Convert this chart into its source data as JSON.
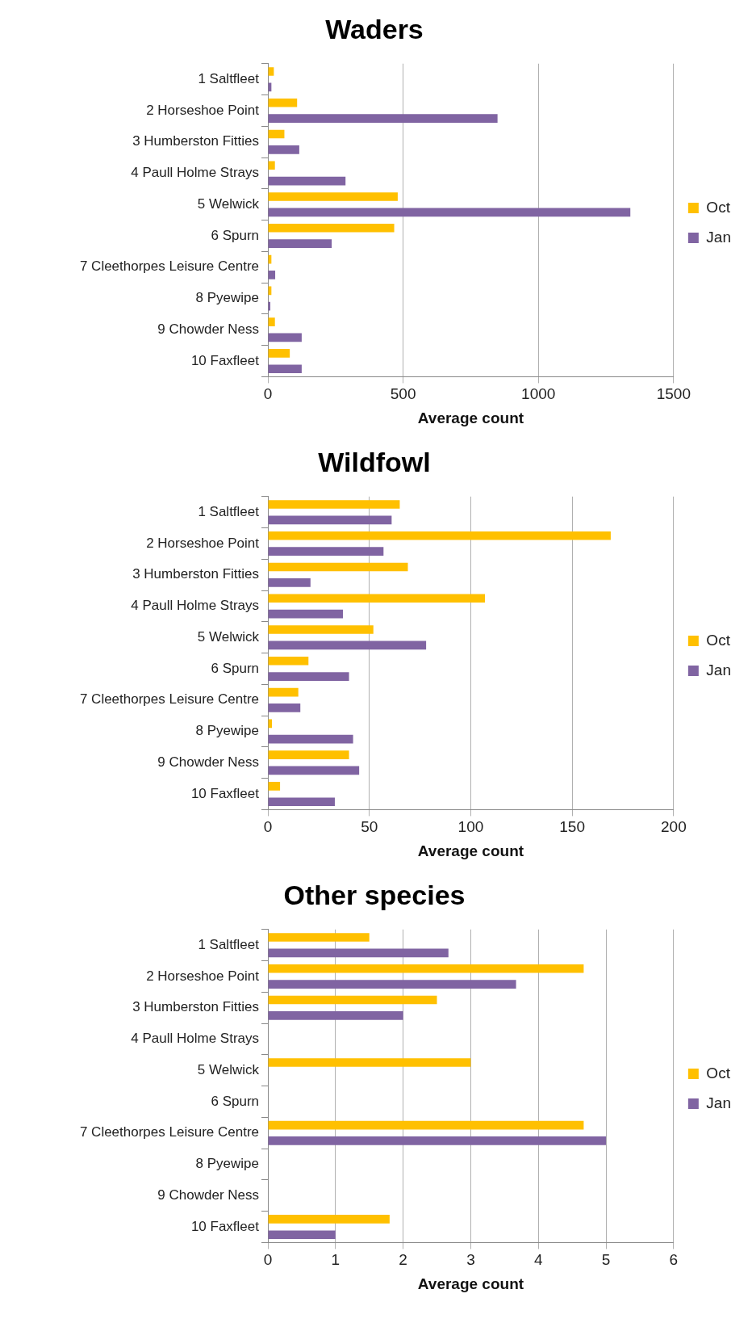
{
  "chart_data": [
    {
      "type": "bar",
      "orientation": "horizontal",
      "title": "Waders",
      "xlabel": "Average count",
      "categories": [
        "1 Saltfleet",
        "2 Horseshoe Point",
        "3 Humberston Fitties",
        "4 Paull Holme Strays",
        "5 Welwick",
        "6 Spurn",
        "7 Cleethorpes Leisure Centre",
        "8 Pyewipe",
        "9 Chowder Ness",
        "10 Faxfleet"
      ],
      "series": [
        {
          "name": "Oct",
          "color": "#ffc000",
          "values": [
            22,
            108,
            61,
            26,
            480,
            467,
            13,
            13,
            26,
            81
          ]
        },
        {
          "name": "Jan",
          "color": "#8064a2",
          "values": [
            13,
            849,
            116,
            287,
            1340,
            236,
            27,
            9,
            125,
            125
          ]
        }
      ],
      "xlim": [
        0,
        1500
      ],
      "xticks": [
        0,
        500,
        1000,
        1500
      ],
      "grid": "x",
      "legend": "right"
    },
    {
      "type": "bar",
      "orientation": "horizontal",
      "title": "Wildfowl",
      "xlabel": "Average count",
      "categories": [
        "1 Saltfleet",
        "2 Horseshoe Point",
        "3 Humberston Fitties",
        "4 Paull Holme Strays",
        "5 Welwick",
        "6 Spurn",
        "7 Cleethorpes Leisure Centre",
        "8 Pyewipe",
        "9 Chowder Ness",
        "10 Faxfleet"
      ],
      "series": [
        {
          "name": "Oct",
          "color": "#ffc000",
          "values": [
            65,
            169,
            69,
            107,
            52,
            20,
            15,
            2,
            40,
            6
          ]
        },
        {
          "name": "Jan",
          "color": "#8064a2",
          "values": [
            61,
            57,
            21,
            37,
            78,
            40,
            16,
            42,
            45,
            33
          ]
        }
      ],
      "xlim": [
        0,
        200
      ],
      "xticks": [
        0,
        50,
        100,
        150,
        200
      ],
      "grid": "x",
      "legend": "right"
    },
    {
      "type": "bar",
      "orientation": "horizontal",
      "title": "Other species",
      "xlabel": "Average count",
      "categories": [
        "1 Saltfleet",
        "2 Horseshoe Point",
        "3 Humberston Fitties",
        "4 Paull Holme Strays",
        "5 Welwick",
        "6 Spurn",
        "7 Cleethorpes Leisure Centre",
        "8 Pyewipe",
        "9 Chowder Ness",
        "10 Faxfleet"
      ],
      "series": [
        {
          "name": "Oct",
          "color": "#ffc000",
          "values": [
            1.5,
            4.67,
            2.5,
            0,
            3,
            0,
            4.67,
            0,
            0,
            1.8
          ]
        },
        {
          "name": "Jan",
          "color": "#8064a2",
          "values": [
            2.67,
            3.67,
            2,
            0,
            0,
            0,
            5,
            0,
            0,
            1
          ]
        }
      ],
      "xlim": [
        0,
        6
      ],
      "xticks": [
        0,
        1,
        2,
        3,
        4,
        5,
        6
      ],
      "grid": "x",
      "legend": "right"
    }
  ]
}
